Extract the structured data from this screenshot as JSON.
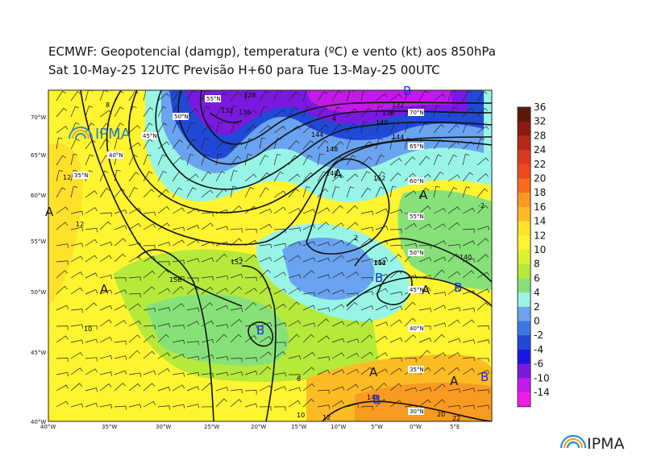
{
  "header": {
    "title": "ECMWF:  Geopotencial (damgp), temperatura (ºC) e vento (kt) aos 850hPa",
    "subtitle": "Sat 10-May-25 12UTC Previsão H+60 para Tue 13-May-25 00UTC"
  },
  "logos": {
    "inset_text": "IPMA",
    "footer_text": "IPMA"
  },
  "lat_labels": [
    "70°W",
    "65°W",
    "60°W",
    "55°W",
    "50°W",
    "45°W",
    "40°W"
  ],
  "lon_labels": [
    "40°W",
    "35°W",
    "30°W",
    "25°W",
    "20°W",
    "15°W",
    "10°W",
    "5°W",
    "0°W",
    "5°E"
  ],
  "grid_labels": [
    "55°N",
    "50°N",
    "45°N",
    "40°N",
    "35°N",
    "70°N",
    "65°N",
    "60°N",
    "55°N",
    "50°N",
    "45°N",
    "40°N",
    "35°N",
    "30°N"
  ],
  "colorbar": {
    "labels": [
      "36",
      "32",
      "28",
      "24",
      "22",
      "20",
      "18",
      "16",
      "14",
      "12",
      "10",
      "8",
      "6",
      "4",
      "2",
      "0",
      "-2",
      "-4",
      "-6",
      "-10",
      "-14"
    ],
    "colors": [
      "#5a1a0a",
      "#8b1a10",
      "#b5271b",
      "#d93a1f",
      "#ef4a1e",
      "#f86c1c",
      "#fb9a21",
      "#fdbb24",
      "#ffe12a",
      "#fff430",
      "#e0f030",
      "#b5ea3a",
      "#86e278",
      "#98f5e6",
      "#6aa3ef",
      "#3f76e3",
      "#2149d7",
      "#1b17e3",
      "#7a19e0",
      "#c21ae8",
      "#ee1ee8"
    ]
  },
  "pressure_centers": [
    {
      "letter": "A",
      "kind": "high"
    },
    {
      "letter": "A",
      "kind": "high"
    },
    {
      "letter": "A",
      "kind": "high"
    },
    {
      "letter": "A",
      "kind": "high"
    },
    {
      "letter": "A",
      "kind": "high"
    },
    {
      "letter": "A",
      "kind": "high"
    },
    {
      "letter": "A",
      "kind": "high"
    },
    {
      "letter": "B",
      "kind": "low"
    },
    {
      "letter": "B",
      "kind": "low"
    },
    {
      "letter": "B",
      "kind": "low"
    },
    {
      "letter": "B",
      "kind": "low"
    },
    {
      "letter": "B",
      "kind": "low"
    },
    {
      "letter": "B",
      "kind": "low"
    }
  ],
  "contour_labels": [
    "152",
    "156",
    "152",
    "148",
    "144",
    "140",
    "136",
    "132",
    "128",
    "152",
    "144",
    "148",
    "140",
    "136",
    "132",
    "140",
    "144"
  ],
  "temperature_labels": [
    "12",
    "12",
    "10",
    "8",
    "6",
    "2",
    "20",
    "22",
    "12",
    "10",
    "4",
    "-2"
  ],
  "colors": {
    "contour": "#111111",
    "high": "#111111",
    "low": "#1a2be0",
    "logo_arc": "#2a90d0"
  }
}
